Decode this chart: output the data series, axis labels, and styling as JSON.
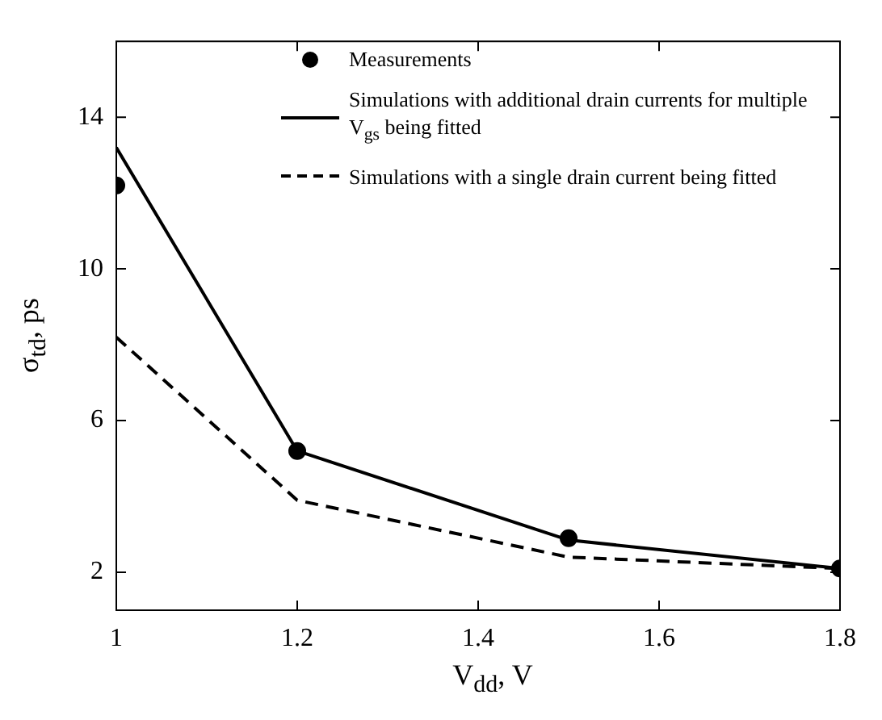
{
  "chart_data": {
    "type": "line",
    "xlabel": "V$_{dd}$, V",
    "ylabel": "σ$_{td}$, ps",
    "xlim": [
      1,
      1.8
    ],
    "xticks": [
      1,
      1.2,
      1.4,
      1.6,
      1.8
    ],
    "ylim": [
      1,
      16
    ],
    "yticks": [
      2,
      6,
      10,
      14
    ],
    "grid": false,
    "legend": "top right",
    "series": [
      {
        "name": "Measurements",
        "type": "scatter",
        "marker": "circle",
        "color": "#000000",
        "x": [
          1,
          1.2,
          1.5,
          1.8
        ],
        "values": [
          12.2,
          5.2,
          2.9,
          2.1
        ]
      },
      {
        "name": "Simulations with additional drain currents for multiple V$_{gs}$ being fitted",
        "marker": "none",
        "line_style": "solid",
        "color": "#000000",
        "x": [
          1,
          1.2,
          1.5,
          1.8
        ],
        "values": [
          13.2,
          5.2,
          2.85,
          2.1
        ]
      },
      {
        "name": "Simulations with a single drain current being fitted",
        "marker": "none",
        "line_style": "dashed",
        "color": "#000000",
        "x": [
          1,
          1.2,
          1.5,
          1.8
        ],
        "values": [
          8.2,
          3.9,
          2.4,
          2.1
        ]
      }
    ]
  }
}
